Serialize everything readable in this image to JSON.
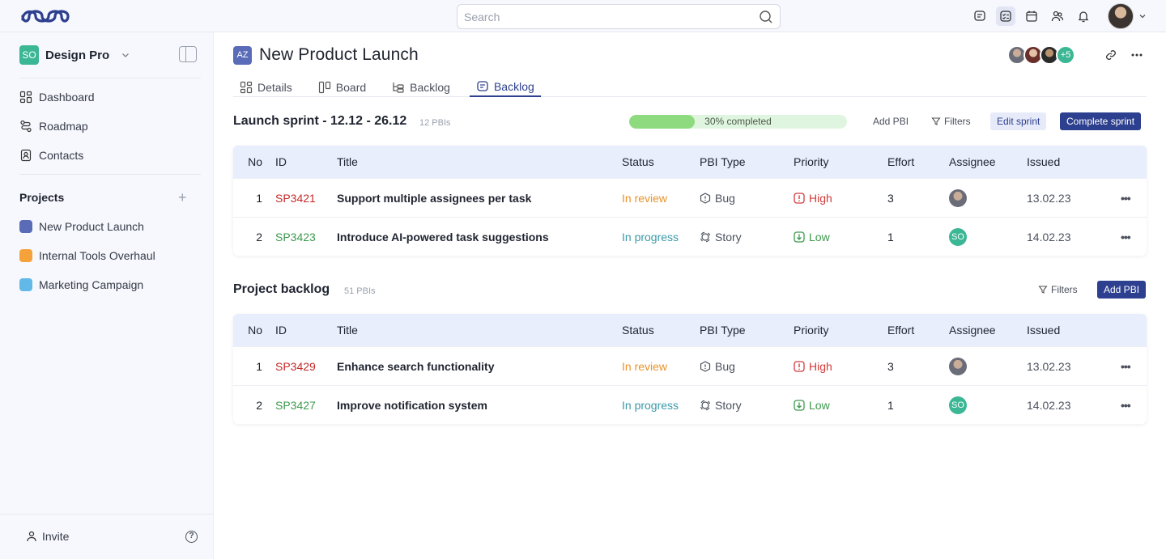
{
  "topbar": {
    "search_placeholder": "Search"
  },
  "sidebar": {
    "workspace_badge": "SO",
    "workspace_name": "Design Pro",
    "nav": [
      {
        "label": "Dashboard"
      },
      {
        "label": "Roadmap"
      },
      {
        "label": "Contacts"
      }
    ],
    "projects_heading": "Projects",
    "projects": [
      {
        "label": "New Product Launch",
        "color": "#5a6bb8"
      },
      {
        "label": "Internal Tools Overhaul",
        "color": "#f5a23b"
      },
      {
        "label": "Marketing Campaign",
        "color": "#62b8e6"
      }
    ],
    "invite_label": "Invite"
  },
  "project": {
    "badge": "AZ",
    "title": "New Product Launch",
    "members_more": "+5",
    "tabs": [
      {
        "label": "Details",
        "icon": "grid-icon"
      },
      {
        "label": "Board",
        "icon": "board-icon"
      },
      {
        "label": "Backlog",
        "icon": "list-tree-icon"
      },
      {
        "label": "Backlog",
        "icon": "backlog-icon",
        "active": true
      }
    ]
  },
  "sprint": {
    "title": "Launch sprint  - 12.12 - 26.12",
    "count": "12 PBIs",
    "progress": 0.3,
    "progress_label": "30% completed",
    "add_pbi": "Add PBI",
    "filters": "Filters",
    "edit": "Edit sprint",
    "complete": "Complete sprint"
  },
  "backlog": {
    "title": "Project backlog",
    "count": "51 PBIs",
    "filters": "Filters",
    "add_pbi": "Add PBI"
  },
  "columns": {
    "no": "No",
    "id": "ID",
    "title": "Title",
    "status": "Status",
    "type": "PBI Type",
    "priority": "Priority",
    "effort": "Effort",
    "assignee": "Assignee",
    "issued": "Issued"
  },
  "sprint_rows": [
    {
      "no": "1",
      "id": "SP3421",
      "title": "Support multiple assignees per task",
      "status": "In review",
      "type": "Bug",
      "priority": "High",
      "effort": "3",
      "issued": "13.02.23"
    },
    {
      "no": "2",
      "id": "SP3423",
      "title": "Introduce AI-powered task suggestions",
      "status": "In progress",
      "type": "Story",
      "priority": "Low",
      "effort": "1",
      "assignee_initials": "SO",
      "issued": "14.02.23"
    }
  ],
  "backlog_rows": [
    {
      "no": "1",
      "id": "SP3429",
      "title": "Enhance search functionality",
      "status": "In review",
      "type": "Bug",
      "priority": "High",
      "effort": "3",
      "issued": "13.02.23"
    },
    {
      "no": "2",
      "id": "SP3427",
      "title": "Improve notification system",
      "status": "In progress",
      "type": "Story",
      "priority": "Low",
      "effort": "1",
      "assignee_initials": "SO",
      "issued": "14.02.23"
    }
  ]
}
